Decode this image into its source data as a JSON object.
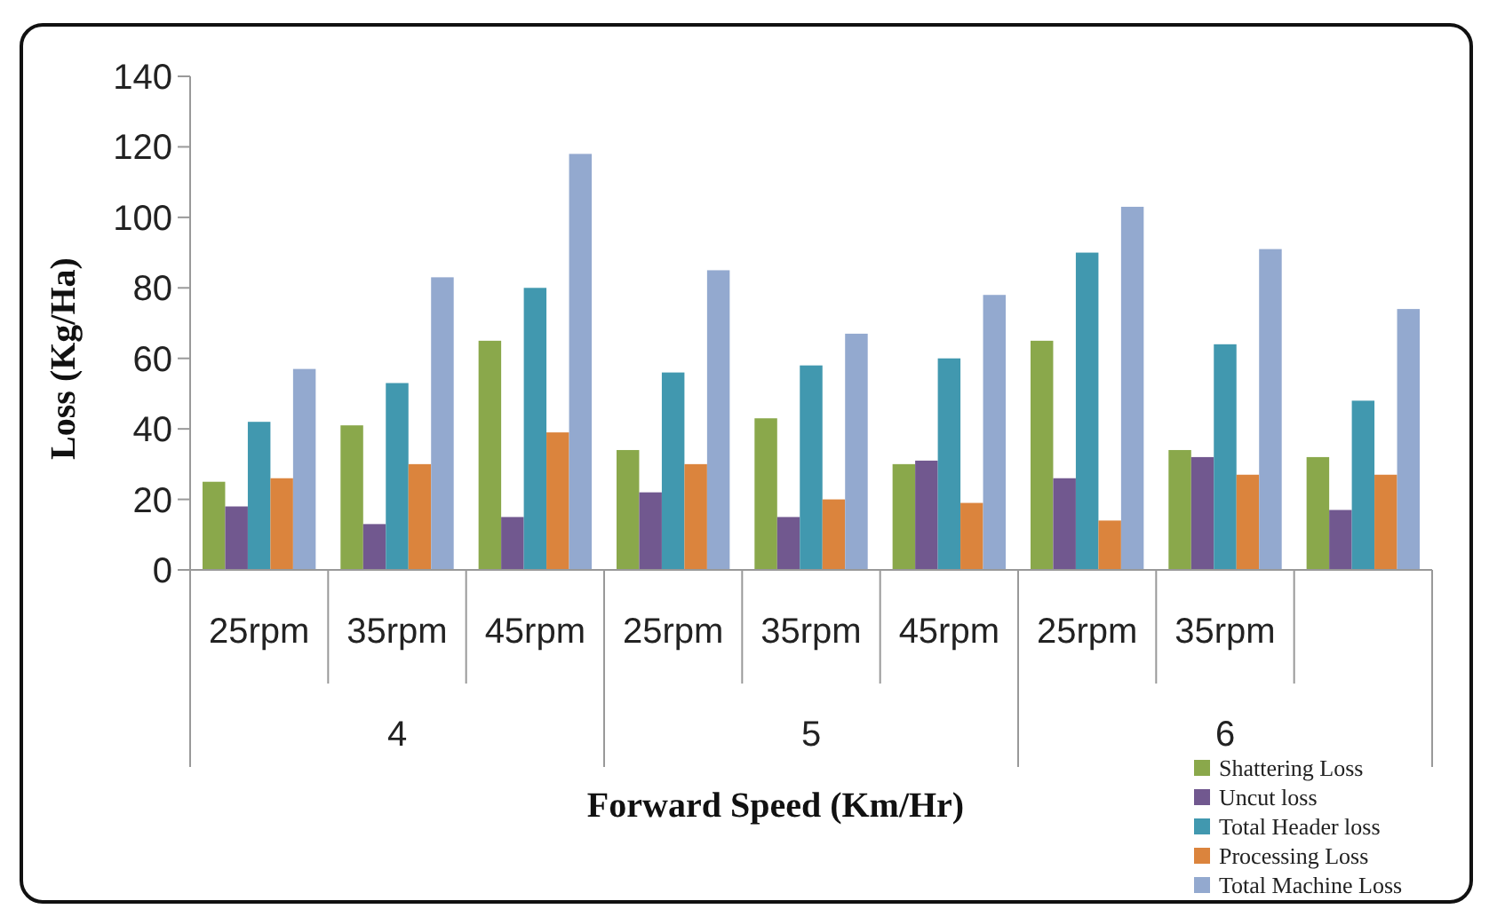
{
  "chart_data": {
    "type": "bar",
    "xlabel": "Forward Speed (Km/Hr)",
    "ylabel": "Loss (Kg/Ha)",
    "categories": [
      "25rpm",
      "35rpm",
      "45rpm",
      "25rpm",
      "35rpm",
      "45rpm",
      "25rpm",
      "35rpm",
      null
    ],
    "annotations": [
      "4",
      "5",
      "6"
    ],
    "series": [
      {
        "name": "Shattering Loss",
        "color": "#8aa84b",
        "values": [
          25,
          41,
          65,
          34,
          43,
          30,
          65,
          34,
          32
        ]
      },
      {
        "name": "Uncut loss",
        "color": "#71588f",
        "values": [
          18,
          13,
          15,
          22,
          15,
          31,
          26,
          32,
          17
        ]
      },
      {
        "name": "Total Header loss",
        "color": "#4198af",
        "values": [
          42,
          53,
          80,
          56,
          58,
          60,
          90,
          64,
          48
        ]
      },
      {
        "name": "Processing Loss",
        "color": "#db843d",
        "values": [
          26,
          30,
          39,
          30,
          20,
          19,
          14,
          27,
          27
        ]
      },
      {
        "name": "Total Machine Loss",
        "color": "#93a9cf",
        "values": [
          57,
          83,
          118,
          85,
          67,
          78,
          103,
          91,
          74
        ]
      }
    ],
    "ylim": [
      0,
      140
    ],
    "yticks": [
      0,
      20,
      40,
      60,
      80,
      100,
      120,
      140
    ],
    "grid": false,
    "legend": "bottom right"
  }
}
